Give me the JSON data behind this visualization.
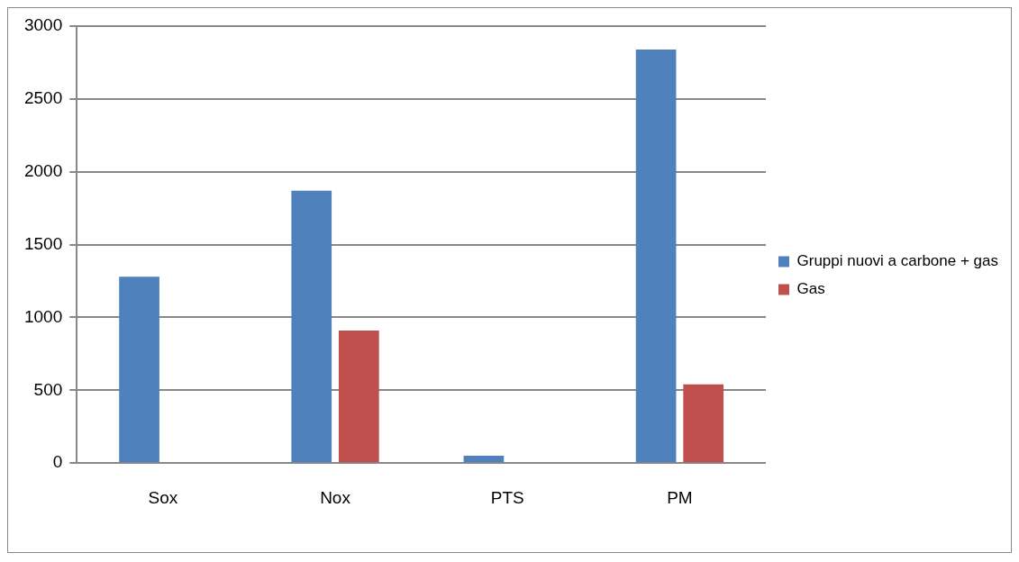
{
  "chart_data": {
    "type": "bar",
    "categories": [
      "Sox",
      "Nox",
      "PTS",
      "PM"
    ],
    "series": [
      {
        "name": "Gruppi nuovi a carbone + gas",
        "color": "#4f81bd",
        "values": [
          1280,
          1870,
          50,
          2840
        ]
      },
      {
        "name": "Gas",
        "color": "#c0504d",
        "values": [
          null,
          910,
          null,
          540
        ]
      }
    ],
    "ylim": [
      0,
      3000
    ],
    "yticks": [
      0,
      500,
      1000,
      1500,
      2000,
      2500,
      3000
    ],
    "grid": "y",
    "legend": "right"
  }
}
